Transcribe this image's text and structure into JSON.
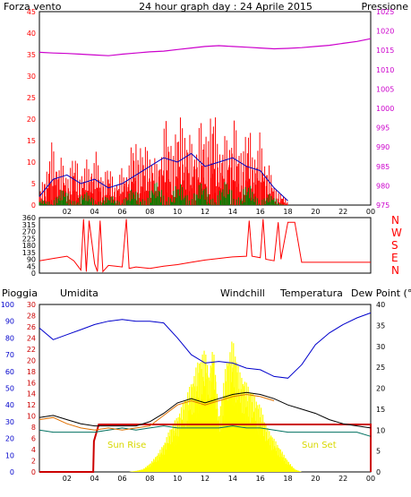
{
  "title_text": "24 hour graph day : 24 Aprile 2015",
  "colors": {
    "wind": "#ff0000",
    "wind_avg": "#0000c0",
    "wind_low": "#008000",
    "pressure": "#cc00cc",
    "direction": "#ff0000",
    "rain": "#cc0000",
    "humidity": "#0000cc",
    "windchill": "#e07000",
    "temperature": "#000000",
    "dewpoint": "#007060",
    "solar": "#ffff00",
    "frame": "#000000"
  },
  "chart_data": [
    {
      "type": "line",
      "title": "24 hour graph day : 24 Aprile 2015",
      "left_axis_label": "Forza vento",
      "right_axis_label": "Pressione",
      "left_ylim": [
        0,
        45
      ],
      "right_ylim": [
        975,
        1025
      ],
      "left_ticks": [
        "0",
        "5",
        "10",
        "15",
        "20",
        "25",
        "30",
        "35",
        "40",
        "45"
      ],
      "right_ticks": [
        "975",
        "980",
        "985",
        "990",
        "995",
        "1000",
        "1005",
        "1010",
        "1015",
        "1020",
        "1025"
      ],
      "x_ticks": [
        "02",
        "04",
        "06",
        "08",
        "10",
        "12",
        "14",
        "16",
        "18",
        "20",
        "22",
        "00"
      ],
      "xlim": [
        0,
        24
      ],
      "series": [
        {
          "key": "pressure",
          "axis": "right",
          "x": [
            0,
            1,
            2,
            3,
            4,
            5,
            6,
            7,
            8,
            9,
            10,
            11,
            12,
            13,
            14,
            15,
            16,
            17,
            18,
            19,
            20,
            21,
            22,
            23,
            24
          ],
          "y": [
            1014.5,
            1014.3,
            1014.2,
            1014.0,
            1013.8,
            1013.6,
            1014.0,
            1014.3,
            1014.6,
            1014.8,
            1015.2,
            1015.6,
            1016.0,
            1016.2,
            1016.0,
            1015.8,
            1015.6,
            1015.4,
            1015.5,
            1015.7,
            1016.0,
            1016.3,
            1016.8,
            1017.3,
            1018.0
          ]
        },
        {
          "key": "wind",
          "axis": "left",
          "x": [
            0,
            0.5,
            1,
            1.5,
            2,
            2.5,
            3,
            3.5,
            4,
            4.5,
            5,
            5.5,
            6,
            6.5,
            7,
            7.5,
            8,
            8.5,
            9,
            9.5,
            10,
            10.5,
            11,
            11.5,
            12,
            12.5,
            13,
            13.5,
            14,
            14.5,
            15,
            15.5,
            16,
            16.5,
            17,
            17.5,
            18
          ],
          "y": [
            3,
            10,
            16,
            12,
            8,
            13,
            9,
            11,
            14,
            8,
            10,
            6,
            9,
            12,
            18,
            14,
            16,
            10,
            22,
            17,
            20,
            24,
            15,
            21,
            19,
            25,
            18,
            16,
            24,
            14,
            20,
            16,
            17,
            12,
            5,
            3,
            1
          ]
        },
        {
          "key": "wind_avg",
          "axis": "left",
          "x": [
            0,
            1,
            2,
            3,
            4,
            5,
            6,
            7,
            8,
            9,
            10,
            11,
            12,
            13,
            14,
            15,
            16,
            17,
            18
          ],
          "y": [
            2,
            6,
            7,
            5,
            6,
            4,
            5,
            7,
            9,
            11,
            10,
            12,
            9,
            10,
            11,
            9,
            8,
            4,
            1
          ]
        },
        {
          "key": "wind_low",
          "axis": "left",
          "x": [
            0,
            1,
            2,
            3,
            4,
            5,
            6,
            7,
            8,
            9,
            10,
            11,
            12,
            13,
            14,
            15,
            16,
            17,
            18
          ],
          "y": [
            1,
            3,
            4,
            3,
            3,
            2,
            3,
            4,
            5,
            6,
            5,
            6,
            5,
            5,
            6,
            5,
            4,
            2,
            0
          ]
        }
      ]
    },
    {
      "type": "line",
      "title": "",
      "left_ylim": [
        0,
        360
      ],
      "left_ticks": [
        "0",
        "45",
        "90",
        "135",
        "180",
        "225",
        "270",
        "315",
        "360"
      ],
      "right_labels": [
        "N",
        "W",
        "S",
        "E",
        "N"
      ],
      "x_ticks": [],
      "xlim": [
        0,
        24
      ],
      "series": [
        {
          "key": "direction",
          "axis": "left",
          "x": [
            0,
            1,
            2,
            2.5,
            3,
            3.2,
            3.4,
            3.6,
            4,
            4.2,
            4.4,
            4.6,
            5,
            6,
            6.3,
            6.5,
            7,
            8,
            9,
            10,
            11,
            12,
            13,
            14,
            15,
            15.2,
            15.4,
            16,
            16.2,
            16.4,
            17,
            17.3,
            17.5,
            18,
            18.5,
            19,
            20,
            21,
            22,
            23,
            24
          ],
          "y": [
            80,
            95,
            110,
            80,
            20,
            350,
            10,
            340,
            60,
            10,
            340,
            10,
            50,
            40,
            350,
            30,
            40,
            30,
            45,
            55,
            70,
            85,
            95,
            105,
            110,
            340,
            110,
            100,
            350,
            90,
            80,
            330,
            90,
            330,
            330,
            70,
            70,
            70,
            70,
            70,
            70
          ]
        }
      ]
    },
    {
      "type": "line",
      "title": "",
      "labels": {
        "rain": "Pioggia",
        "humidity": "Umidita",
        "windchill": "Windchill",
        "temperature": "Temperatura",
        "dewpoint": "Dew Point (°C"
      },
      "sun_rise_label": "Sun Rise",
      "sun_set_label": "Sun Set",
      "humidity_ticks": [
        "0",
        "10",
        "20",
        "30",
        "40",
        "50",
        "60",
        "70",
        "80",
        "90",
        "100"
      ],
      "rain_ticks": [
        "0",
        "2",
        "4",
        "6",
        "8",
        "10",
        "12",
        "14",
        "16",
        "18",
        "20",
        "22",
        "24",
        "26",
        "28",
        "30"
      ],
      "temp_ticks": [
        "0",
        "5",
        "10",
        "15",
        "20",
        "25",
        "30",
        "35",
        "40"
      ],
      "humidity_ylim": [
        0,
        100
      ],
      "rain_ylim": [
        0,
        30
      ],
      "temp_ylim": [
        0,
        40
      ],
      "x_ticks": [
        "02",
        "04",
        "06",
        "08",
        "10",
        "12",
        "14",
        "16",
        "18",
        "20",
        "22",
        "00"
      ],
      "xlim": [
        0,
        24
      ],
      "series": [
        {
          "key": "humidity",
          "axis": "humidity",
          "x": [
            0,
            1,
            2,
            3,
            4,
            5,
            6,
            7,
            8,
            9,
            10,
            11,
            12,
            13,
            14,
            15,
            16,
            17,
            18,
            19,
            20,
            21,
            22,
            23,
            24
          ],
          "y": [
            86,
            79,
            82,
            85,
            88,
            90,
            91,
            90,
            90,
            89,
            80,
            70,
            65,
            66,
            65,
            62,
            61,
            57,
            56,
            64,
            76,
            83,
            88,
            92,
            95
          ]
        },
        {
          "key": "temperature",
          "axis": "temp",
          "x": [
            0,
            1,
            2,
            3,
            4,
            5,
            6,
            7,
            8,
            9,
            10,
            11,
            12,
            13,
            14,
            15,
            16,
            17,
            18,
            19,
            20,
            21,
            22,
            23,
            24
          ],
          "y": [
            13,
            13.5,
            12.5,
            11.5,
            11,
            11,
            11,
            11,
            12,
            14,
            16.5,
            17.5,
            16.5,
            17.5,
            18.5,
            19,
            18.5,
            17.5,
            16,
            15,
            14,
            12.5,
            11.5,
            11,
            10.5
          ]
        },
        {
          "key": "windchill",
          "axis": "temp",
          "x": [
            0,
            1,
            2,
            3,
            4,
            5,
            6,
            7,
            8,
            9,
            10,
            11,
            12,
            13,
            14,
            15,
            16,
            17
          ],
          "y": [
            12.5,
            13,
            11.5,
            10.5,
            10,
            10.5,
            10,
            10.5,
            11,
            13.5,
            16,
            17,
            16,
            17,
            18,
            18.5,
            18,
            17
          ]
        },
        {
          "key": "dewpoint",
          "axis": "temp",
          "x": [
            0,
            1,
            2,
            3,
            4,
            5,
            6,
            7,
            8,
            9,
            10,
            11,
            12,
            13,
            14,
            15,
            16,
            17,
            18,
            19,
            20,
            21,
            22,
            23,
            24
          ],
          "y": [
            10,
            9.5,
            9.5,
            9.5,
            9.5,
            10,
            10.5,
            10,
            10.5,
            11,
            10.5,
            10.5,
            10.5,
            10.5,
            11,
            10.5,
            10.5,
            10,
            9.5,
            9.5,
            9.5,
            9.5,
            9.5,
            9.5,
            8.5
          ]
        },
        {
          "key": "rain",
          "axis": "rain",
          "x": [
            0,
            3.9,
            3.95,
            4.3,
            5,
            24,
            24
          ],
          "y": [
            0,
            0,
            5.5,
            8.5,
            8.5,
            8.5,
            0
          ]
        },
        {
          "key": "solar",
          "axis": "rain",
          "x": [
            6.5,
            7,
            7.5,
            8,
            8.5,
            9,
            9.5,
            10,
            10.5,
            11,
            11.5,
            12,
            12.3,
            12.6,
            13,
            13.5,
            14,
            14.5,
            15,
            15.5,
            16,
            16.5,
            17,
            17.5,
            18,
            18.5,
            19
          ],
          "y": [
            0,
            0.2,
            0.5,
            1.5,
            3,
            5,
            8,
            10,
            13,
            16,
            20,
            22,
            17,
            23,
            10,
            19,
            24,
            18,
            16,
            14,
            12,
            8,
            6,
            4,
            2,
            0.5,
            0
          ]
        }
      ]
    }
  ]
}
